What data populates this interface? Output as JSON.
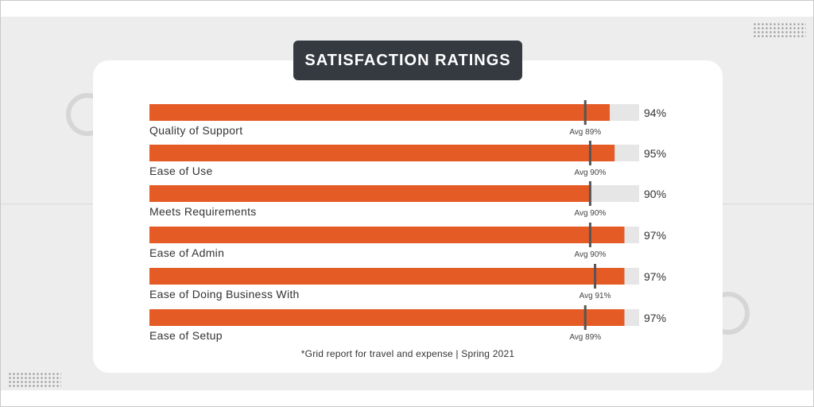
{
  "title": "SATISFACTION RATINGS",
  "footnote": "*Grid report for travel and expense | Spring 2021",
  "colors": {
    "bar": "#e45b25",
    "track": "#e6e6e6",
    "marker": "#555555",
    "title_bg": "#343a40"
  },
  "chart_data": {
    "type": "bar",
    "orientation": "horizontal",
    "title": "SATISFACTION RATINGS",
    "xlim": [
      0,
      100
    ],
    "grid": false,
    "categories": [
      "Quality of Support",
      "Ease of Use",
      "Meets Requirements",
      "Ease of Admin",
      "Ease of Doing Business With",
      "Ease of Setup"
    ],
    "values": [
      94,
      95,
      90,
      97,
      97,
      97
    ],
    "value_labels": [
      "94%",
      "95%",
      "90%",
      "97%",
      "97%",
      "97%"
    ],
    "averages": [
      89,
      90,
      90,
      90,
      91,
      89
    ],
    "average_labels": [
      "Avg 89%",
      "Avg 90%",
      "Avg 90%",
      "Avg 90%",
      "Avg 91%",
      "Avg 89%"
    ]
  }
}
